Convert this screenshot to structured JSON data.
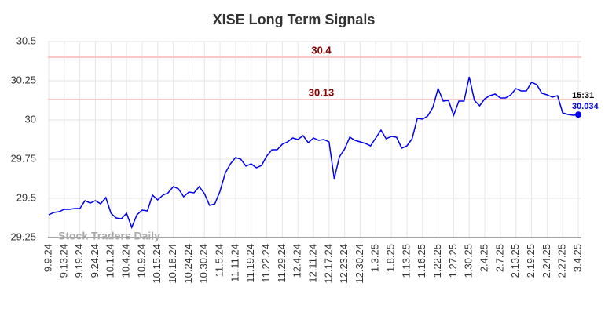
{
  "chart_data": {
    "type": "line",
    "title": "XISE Long Term Signals",
    "watermark": "Stock Traders Daily",
    "categories": [
      "9.9.24",
      null,
      null,
      "9.13.24",
      null,
      null,
      "9.19.24",
      null,
      null,
      "9.24.24",
      null,
      null,
      "10.1.24",
      null,
      null,
      "10.4.24",
      null,
      null,
      "10.9.24",
      null,
      null,
      "10.15.24",
      null,
      null,
      "10.18.24",
      null,
      null,
      "10.24.24",
      null,
      null,
      "10.30.24",
      null,
      null,
      "11.5.24",
      null,
      null,
      "11.11.24",
      null,
      null,
      "11.19.24",
      null,
      null,
      "11.22.24",
      null,
      null,
      "11.29.24",
      null,
      null,
      "12.4.24",
      null,
      null,
      "12.11.24",
      null,
      null,
      "12.17.24",
      null,
      null,
      "12.23.24",
      null,
      null,
      "12.30.24",
      null,
      null,
      "1.3.25",
      null,
      null,
      "1.8.25",
      null,
      null,
      "1.13.25",
      null,
      null,
      "1.16.25",
      null,
      null,
      "1.22.25",
      null,
      null,
      "1.27.25",
      null,
      null,
      "1.30.25",
      null,
      null,
      "2.4.25",
      null,
      null,
      "2.7.25",
      null,
      null,
      "2.13.25",
      null,
      null,
      "2.19.25",
      null,
      null,
      "2.24.25",
      null,
      null,
      "2.27.25",
      null,
      null,
      "3.4.25"
    ],
    "series": [
      {
        "color": "#0000ee",
        "values": [
          29.395,
          29.41,
          29.415,
          29.43,
          29.43,
          29.435,
          29.435,
          29.485,
          29.47,
          29.485,
          29.465,
          29.505,
          29.405,
          29.375,
          29.37,
          29.405,
          29.315,
          29.395,
          29.425,
          29.42,
          29.52,
          29.49,
          29.52,
          29.535,
          29.575,
          29.56,
          29.51,
          29.54,
          29.535,
          29.575,
          29.53,
          29.455,
          29.465,
          29.545,
          29.66,
          29.72,
          29.76,
          29.75,
          29.705,
          29.72,
          29.695,
          29.71,
          29.77,
          29.81,
          29.81,
          29.845,
          29.86,
          29.885,
          29.875,
          29.9,
          29.855,
          29.885,
          29.87,
          29.875,
          29.86,
          29.625,
          29.765,
          29.815,
          29.89,
          29.87,
          29.86,
          29.85,
          29.835,
          29.885,
          29.935,
          29.88,
          29.895,
          29.89,
          29.82,
          29.835,
          29.88,
          30.01,
          30.005,
          30.025,
          30.08,
          30.2,
          30.12,
          30.125,
          30.03,
          30.12,
          30.12,
          30.275,
          30.125,
          30.09,
          30.135,
          30.155,
          30.165,
          30.14,
          30.14,
          30.16,
          30.2,
          30.185,
          30.185,
          30.24,
          30.225,
          30.17,
          30.16,
          30.145,
          30.155,
          30.045,
          30.035,
          30.03,
          30.034
        ]
      }
    ],
    "signal_lines": [
      30.4,
      30.13
    ],
    "signal_color": "#ffc8c8",
    "signal_label_color": "#8b0000",
    "last_time": "15:31",
    "ylim": [
      29.25,
      30.5
    ],
    "yticks": [
      29.25,
      29.5,
      29.75,
      30,
      30.25,
      30.5
    ],
    "grid": true
  }
}
